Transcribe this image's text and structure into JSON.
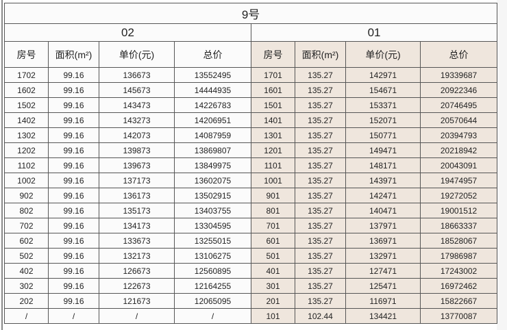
{
  "title": "9号",
  "units": [
    {
      "name": "02",
      "headers": [
        "房号",
        "面积(m²)",
        "单价(元)",
        "总价"
      ],
      "rows": [
        [
          "1702",
          "99.16",
          "136673",
          "13552495"
        ],
        [
          "1602",
          "99.16",
          "145673",
          "14444935"
        ],
        [
          "1502",
          "99.16",
          "143473",
          "14226783"
        ],
        [
          "1402",
          "99.16",
          "143273",
          "14206951"
        ],
        [
          "1302",
          "99.16",
          "142073",
          "14087959"
        ],
        [
          "1202",
          "99.16",
          "139873",
          "13869807"
        ],
        [
          "1102",
          "99.16",
          "139673",
          "13849975"
        ],
        [
          "1002",
          "99.16",
          "137173",
          "13602075"
        ],
        [
          "902",
          "99.16",
          "136173",
          "13502915"
        ],
        [
          "802",
          "99.16",
          "135173",
          "13403755"
        ],
        [
          "702",
          "99.16",
          "134173",
          "13304595"
        ],
        [
          "602",
          "99.16",
          "133673",
          "13255015"
        ],
        [
          "502",
          "99.16",
          "132173",
          "13106275"
        ],
        [
          "402",
          "99.16",
          "126673",
          "12560895"
        ],
        [
          "302",
          "99.16",
          "122673",
          "12164255"
        ],
        [
          "202",
          "99.16",
          "121673",
          "12065095"
        ],
        [
          "/",
          "/",
          "/",
          "/"
        ]
      ]
    },
    {
      "name": "01",
      "headers": [
        "房号",
        "面积(m²)",
        "单价(元)",
        "总价"
      ],
      "rows": [
        [
          "1701",
          "135.27",
          "142971",
          "19339687"
        ],
        [
          "1601",
          "135.27",
          "154671",
          "20922346"
        ],
        [
          "1501",
          "135.27",
          "153371",
          "20746495"
        ],
        [
          "1401",
          "135.27",
          "152071",
          "20570644"
        ],
        [
          "1301",
          "135.27",
          "150771",
          "20394793"
        ],
        [
          "1201",
          "135.27",
          "149471",
          "20218942"
        ],
        [
          "1101",
          "135.27",
          "148171",
          "20043091"
        ],
        [
          "1001",
          "135.27",
          "143971",
          "19474957"
        ],
        [
          "901",
          "135.27",
          "142471",
          "19272052"
        ],
        [
          "801",
          "135.27",
          "140471",
          "19001512"
        ],
        [
          "701",
          "135.27",
          "137971",
          "18663337"
        ],
        [
          "601",
          "135.27",
          "136971",
          "18528067"
        ],
        [
          "501",
          "135.27",
          "132971",
          "17986987"
        ],
        [
          "401",
          "135.27",
          "127471",
          "17243002"
        ],
        [
          "301",
          "135.27",
          "125471",
          "16972462"
        ],
        [
          "201",
          "135.27",
          "116971",
          "15822667"
        ],
        [
          "101",
          "102.44",
          "134421",
          "13770087"
        ]
      ]
    }
  ],
  "colors": {
    "right_bg": "#efe6dd",
    "border": "#555555"
  }
}
